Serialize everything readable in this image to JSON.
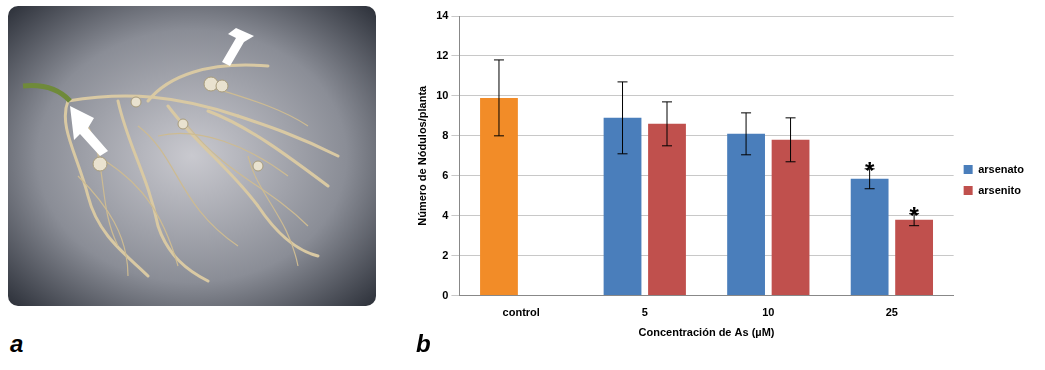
{
  "panel_labels": [
    "a",
    "b"
  ],
  "chart_data": {
    "type": "bar",
    "x_label": "Concentración de As (µM)",
    "y_label": "Número de Nódulos/planta",
    "categories": [
      "control",
      "5",
      "10",
      "25"
    ],
    "series": [
      {
        "name": "arsenato",
        "color": "#4a7ebb",
        "colors": [
          "#f28c28",
          "#4a7ebb",
          "#4a7ebb",
          "#4a7ebb"
        ],
        "values": [
          9.9,
          8.9,
          8.1,
          5.85
        ],
        "errors": [
          1.9,
          1.8,
          1.05,
          0.5
        ]
      },
      {
        "name": "arsenito",
        "color": "#c0504d",
        "values": [
          0,
          8.6,
          7.8,
          3.8
        ],
        "errors": [
          null,
          1.1,
          1.1,
          0.3
        ]
      }
    ],
    "annotations": [
      {
        "category": "25",
        "series": "arsenato",
        "text": "*"
      },
      {
        "category": "25",
        "series": "arsenito",
        "text": "*"
      }
    ],
    "ylim": [
      0,
      14
    ],
    "yticks": [
      0,
      2,
      4,
      6,
      8,
      10,
      12,
      14
    ],
    "grid": true,
    "legend": "right"
  }
}
